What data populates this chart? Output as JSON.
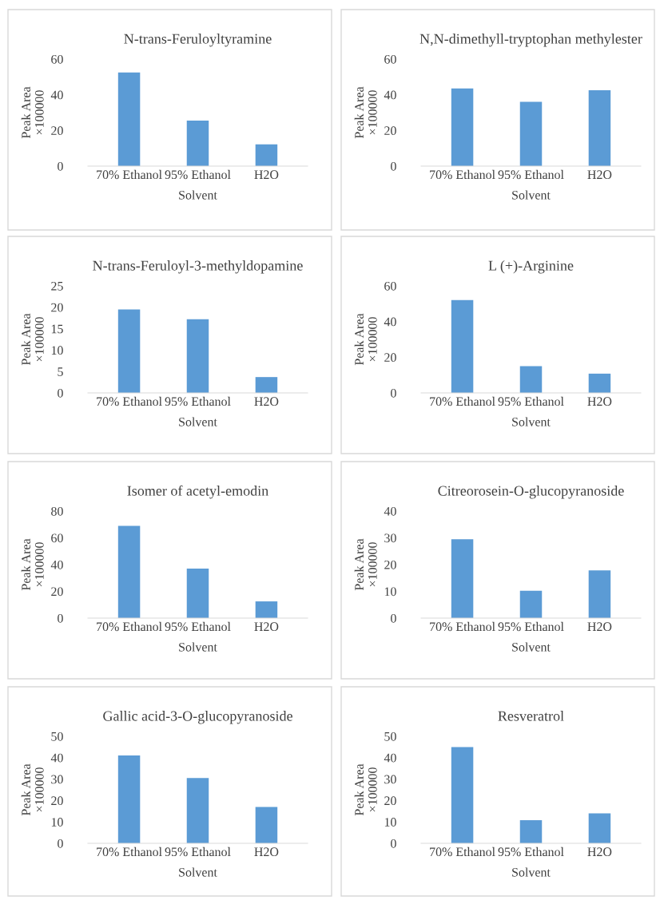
{
  "chart_data": [
    {
      "type": "bar",
      "title": "N-trans-Feruloyltyramine",
      "xlabel": "Solvent",
      "ylabel": "Peak Area\n×100000",
      "categories": [
        "70% Ethanol",
        "95% Ethanol",
        "H2O"
      ],
      "values": [
        52.5,
        25.5,
        12.2
      ],
      "color": "#5b9bd5",
      "ylim": [
        0,
        60
      ],
      "yticks": [
        0,
        20,
        40,
        60
      ]
    },
    {
      "type": "bar",
      "title": "N,N-dimethyll-tryptophan methylester",
      "xlabel": "Solvent",
      "ylabel": "Peak Area\n×100000",
      "categories": [
        "70% Ethanol",
        "95% Ethanol",
        "H2O"
      ],
      "values": [
        43.5,
        36,
        42.5
      ],
      "color": "#5b9bd5",
      "ylim": [
        0,
        60
      ],
      "yticks": [
        0,
        20,
        40,
        60
      ]
    },
    {
      "type": "bar",
      "title": "N-trans-Feruloyl-3-methyldopamine",
      "xlabel": "Solvent",
      "ylabel": "Peak Area\n×100000",
      "categories": [
        "70% Ethanol",
        "95% Ethanol",
        "H2O"
      ],
      "values": [
        19.5,
        17.2,
        3.7
      ],
      "color": "#5b9bd5",
      "ylim": [
        0,
        25
      ],
      "yticks": [
        0,
        5,
        10,
        15,
        20,
        25
      ]
    },
    {
      "type": "bar",
      "title": "L (+)-Arginine",
      "xlabel": "Solvent",
      "ylabel": "Peak Area\n×100000",
      "categories": [
        "70% Ethanol",
        "95% Ethanol",
        "H2O"
      ],
      "values": [
        52,
        15,
        10.8
      ],
      "color": "#5b9bd5",
      "ylim": [
        0,
        60
      ],
      "yticks": [
        0,
        20,
        40,
        60
      ]
    },
    {
      "type": "bar",
      "title": "Isomer of acetyl-emodin",
      "xlabel": "Solvent",
      "ylabel": "Peak Area\n×100000",
      "categories": [
        "70% Ethanol",
        "95% Ethanol",
        "H2O"
      ],
      "values": [
        69,
        37,
        12.5
      ],
      "color": "#5b9bd5",
      "ylim": [
        0,
        80
      ],
      "yticks": [
        0,
        20,
        40,
        60,
        80
      ]
    },
    {
      "type": "bar",
      "title": "Citreorosein-O-glucopyranoside",
      "xlabel": "Solvent",
      "ylabel": "Peak Area\n×100000",
      "categories": [
        "70% Ethanol",
        "95% Ethanol",
        "H2O"
      ],
      "values": [
        29.5,
        10.2,
        17.8
      ],
      "color": "#5b9bd5",
      "ylim": [
        0,
        40
      ],
      "yticks": [
        0,
        10,
        20,
        30,
        40
      ]
    },
    {
      "type": "bar",
      "title": "Gallic acid-3-O-glucopyranoside",
      "xlabel": "Solvent",
      "ylabel": "Peak Area\n×100000",
      "categories": [
        "70% Ethanol",
        "95% Ethanol",
        "H2O"
      ],
      "values": [
        41,
        30.5,
        17
      ],
      "color": "#5b9bd5",
      "ylim": [
        0,
        50
      ],
      "yticks": [
        0,
        10,
        20,
        30,
        40,
        50
      ]
    },
    {
      "type": "bar",
      "title": "Resveratrol",
      "xlabel": "Solvent",
      "ylabel": "Peak Area\n×100000",
      "categories": [
        "70% Ethanol",
        "95% Ethanol",
        "H2O"
      ],
      "values": [
        45,
        10.8,
        14
      ],
      "color": "#5b9bd5",
      "ylim": [
        0,
        50
      ],
      "yticks": [
        0,
        10,
        20,
        30,
        40,
        50
      ]
    }
  ]
}
